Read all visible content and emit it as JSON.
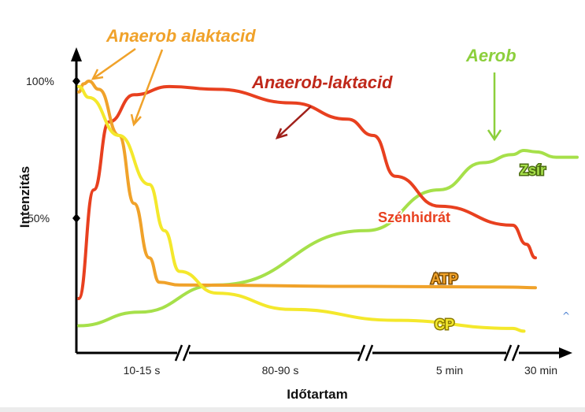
{
  "chart_data": {
    "type": "line",
    "xlabel": "Időtartam",
    "ylabel": "Intenzitás",
    "y_ticks": [
      "100%",
      "50%"
    ],
    "x_ticks": [
      "10-15 s",
      "80-90 s",
      "5 min",
      "30 min"
    ],
    "x_axis_breaks": 3,
    "grid": false,
    "series": [
      {
        "name": "Szénhidrát",
        "color": "#e8401f",
        "points": [
          [
            0,
            20
          ],
          [
            0.15,
            60
          ],
          [
            0.3,
            85
          ],
          [
            0.55,
            95
          ],
          [
            0.9,
            98
          ],
          [
            1.2,
            97
          ],
          [
            1.6,
            92
          ],
          [
            1.9,
            86
          ],
          [
            2.05,
            80
          ],
          [
            2.2,
            65
          ],
          [
            2.5,
            54
          ],
          [
            3,
            47
          ],
          [
            3.6,
            40
          ],
          [
            4.0,
            35
          ]
        ]
      },
      {
        "name": "ATP",
        "color": "#f0a22a",
        "points": [
          [
            0,
            96
          ],
          [
            0.05,
            99
          ],
          [
            0.1,
            100
          ],
          [
            0.2,
            97
          ],
          [
            0.4,
            80
          ],
          [
            0.55,
            55
          ],
          [
            0.7,
            35
          ],
          [
            0.8,
            26
          ],
          [
            1.0,
            25
          ],
          [
            2,
            24.5
          ],
          [
            3,
            24.2
          ],
          [
            4.0,
            24
          ]
        ]
      },
      {
        "name": "CP",
        "color": "#f4e82c",
        "points": [
          [
            0,
            98
          ],
          [
            0.1,
            94
          ],
          [
            0.4,
            80
          ],
          [
            0.7,
            62
          ],
          [
            0.85,
            45
          ],
          [
            1.0,
            30
          ],
          [
            1.2,
            22
          ],
          [
            1.6,
            16
          ],
          [
            2.2,
            12
          ],
          [
            3,
            9
          ],
          [
            3.5,
            8
          ]
        ]
      },
      {
        "name": "Zsír",
        "color": "#a6e04a",
        "points": [
          [
            0,
            10
          ],
          [
            0.6,
            15
          ],
          [
            1.2,
            25
          ],
          [
            2,
            45
          ],
          [
            2.5,
            60
          ],
          [
            2.8,
            70
          ],
          [
            3,
            73
          ],
          [
            3.5,
            74.5
          ],
          [
            4.0,
            74
          ],
          [
            4.2,
            72
          ],
          [
            4.4,
            72
          ]
        ]
      }
    ],
    "annotations": [
      {
        "text": "Anaerob alaktacid",
        "color": "#f0a22a"
      },
      {
        "text": "Anaerob-laktacid",
        "color": "#c0281a"
      },
      {
        "text": "Aerob",
        "color": "#8ccf3c"
      }
    ]
  }
}
